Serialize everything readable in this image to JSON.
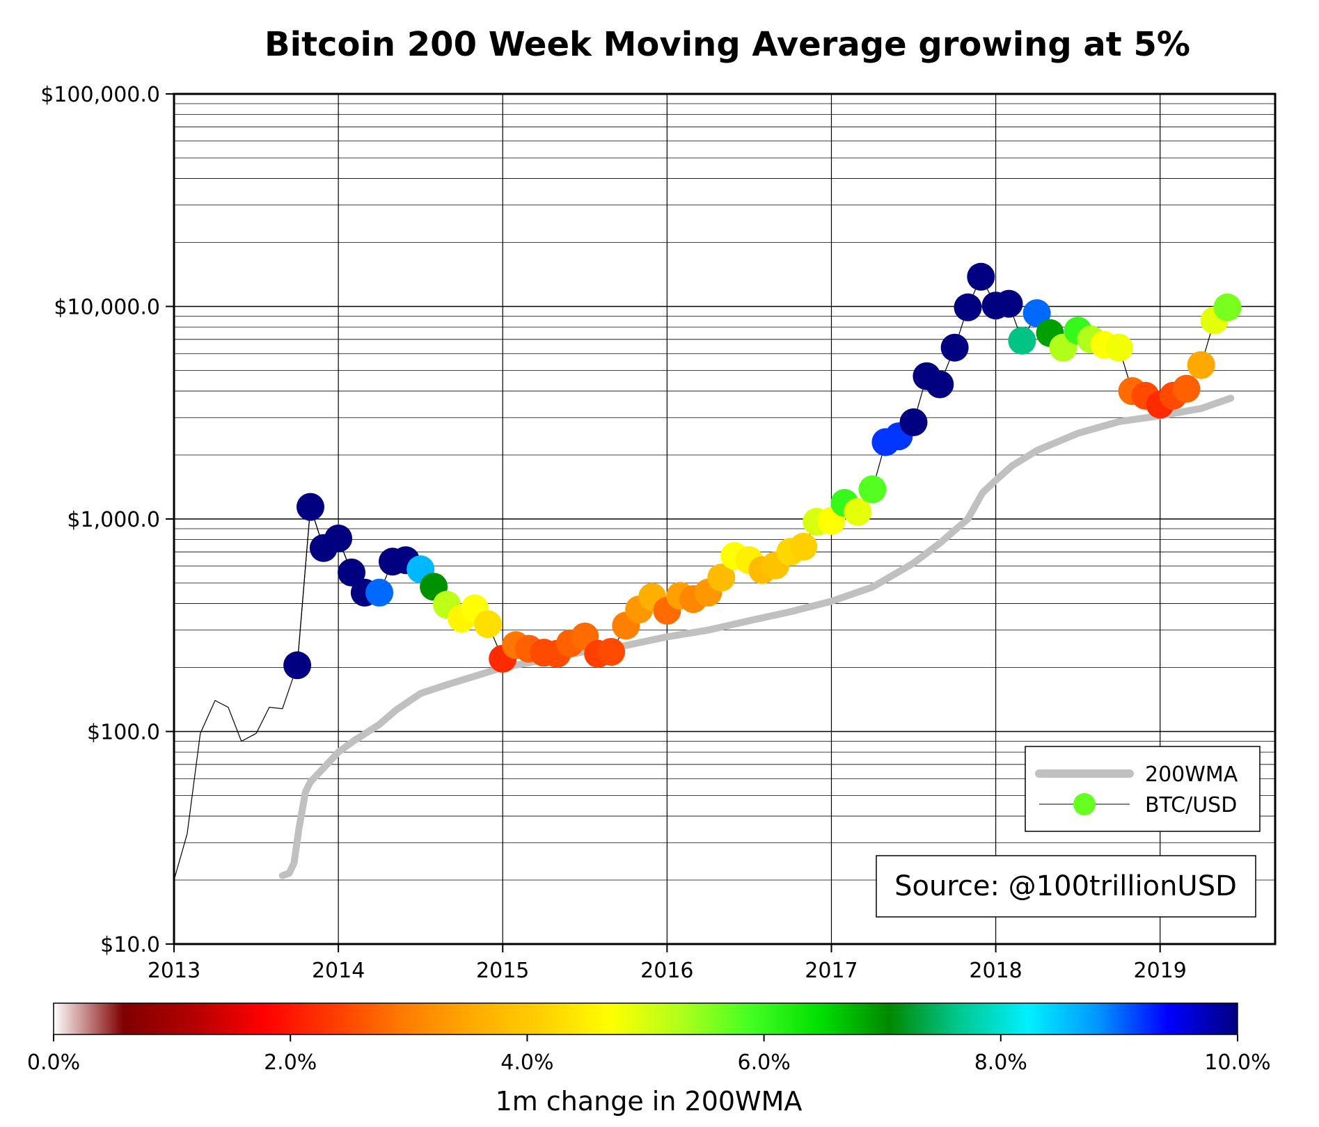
{
  "chart_data": {
    "type": "scatter",
    "title": "Bitcoin 200 Week Moving Average growing at 5%",
    "xlabel": "",
    "ylabel": "",
    "yscale": "log",
    "ylim": [
      10,
      100000
    ],
    "xlim": [
      2013.0,
      2019.7
    ],
    "x_ticks": [
      2013,
      2014,
      2015,
      2016,
      2017,
      2018,
      2019
    ],
    "x_tick_labels": [
      "2013",
      "2014",
      "2015",
      "2016",
      "2017",
      "2018",
      "2019"
    ],
    "y_ticks": [
      10,
      100,
      1000,
      10000,
      100000
    ],
    "y_tick_labels": [
      "$10.0",
      "$100.0",
      "$1,000.0",
      "$10,000.0",
      "$100,000.0"
    ],
    "grid": true,
    "legend": {
      "position": "lower-right",
      "entries": [
        "200WMA",
        "BTC/USD"
      ],
      "btc_marker_color": "#66ff22",
      "wma_color": "#c0c0c0"
    },
    "annotation": "Source: @100trillionUSD",
    "colorbar": {
      "label": "1m change in 200WMA",
      "min": 0,
      "max": 10,
      "ticks": [
        "0.0%",
        "2.0%",
        "4.0%",
        "6.0%",
        "8.0%",
        "10.0%"
      ],
      "colors": [
        "#ffffff",
        "#800000",
        "#b40000",
        "#ff0000",
        "#ff3a00",
        "#ff7a00",
        "#ffaa00",
        "#ffd000",
        "#ffff00",
        "#b0ff1a",
        "#44ff22",
        "#00e000",
        "#008800",
        "#00c890",
        "#00f0ff",
        "#0096ff",
        "#0000ff",
        "#000080"
      ]
    },
    "series": [
      {
        "name": "BTC/USD line (monthly)",
        "x": [
          2013.0,
          2013.08,
          2013.16,
          2013.25,
          2013.33,
          2013.41,
          2013.5,
          2013.58,
          2013.66,
          2013.75,
          2013.83,
          2013.91,
          2014.0,
          2014.08
        ],
        "y": [
          20,
          33,
          98,
          140,
          130,
          90,
          98,
          130,
          128,
          205,
          1140,
          730,
          810,
          560
        ]
      },
      {
        "name": "BTC/USD",
        "x": [
          2013.75,
          2013.83,
          2013.91,
          2014.0,
          2014.08,
          2014.16,
          2014.25,
          2014.33,
          2014.41,
          2014.5,
          2014.58,
          2014.66,
          2014.75,
          2014.83,
          2014.91,
          2015.0,
          2015.08,
          2015.16,
          2015.25,
          2015.33,
          2015.41,
          2015.5,
          2015.58,
          2015.66,
          2015.75,
          2015.83,
          2015.91,
          2016.0,
          2016.08,
          2016.16,
          2016.25,
          2016.33,
          2016.41,
          2016.5,
          2016.58,
          2016.66,
          2016.75,
          2016.83,
          2016.91,
          2017.0,
          2017.08,
          2017.16,
          2017.25,
          2017.33,
          2017.41,
          2017.5,
          2017.58,
          2017.66,
          2017.75,
          2017.83,
          2017.91,
          2018.0,
          2018.08,
          2018.16,
          2018.25,
          2018.33,
          2018.41,
          2018.5,
          2018.58,
          2018.66,
          2018.75,
          2018.83,
          2018.91,
          2019.0,
          2019.08,
          2019.16,
          2019.25,
          2019.33,
          2019.41
        ],
        "y": [
          205,
          1140,
          730,
          810,
          560,
          450,
          450,
          630,
          640,
          580,
          480,
          395,
          340,
          380,
          320,
          220,
          255,
          245,
          235,
          232,
          260,
          280,
          232,
          237,
          315,
          375,
          430,
          370,
          435,
          420,
          450,
          530,
          670,
          640,
          575,
          605,
          700,
          740,
          970,
          980,
          1190,
          1080,
          1380,
          2300,
          2450,
          2850,
          4700,
          4300,
          6400,
          9900,
          13800,
          10100,
          10300,
          6900,
          9300,
          7500,
          6400,
          7700,
          7000,
          6600,
          6400,
          4000,
          3800,
          3450,
          3800,
          4100,
          5300,
          8600,
          9900
        ],
        "color_pct": [
          10,
          10,
          10,
          10,
          10,
          10,
          9,
          10,
          10,
          8.6,
          7,
          5.2,
          4.6,
          4.7,
          4.3,
          2.2,
          2.9,
          2.7,
          2.5,
          2.5,
          2.7,
          2.8,
          2.4,
          2.5,
          3.0,
          3.3,
          3.6,
          2.8,
          3.4,
          3.1,
          3.3,
          3.8,
          4.7,
          4.5,
          3.8,
          3.9,
          4.2,
          4.1,
          5.0,
          4.7,
          6.0,
          4.9,
          5.8,
          9.2,
          9.2,
          10,
          10,
          10,
          10,
          10,
          10,
          10,
          10,
          7.6,
          9,
          6.9,
          5.3,
          6.0,
          5.3,
          4.7,
          4.8,
          2.8,
          2.5,
          2.2,
          2.5,
          2.7,
          3.5,
          4.9,
          5.6
        ]
      },
      {
        "name": "200WMA",
        "x": [
          2013.66,
          2013.7,
          2013.73,
          2013.76,
          2013.8,
          2013.83,
          2013.9,
          2014.0,
          2014.1,
          2014.25,
          2014.35,
          2014.5,
          2014.66,
          2014.83,
          2015.0,
          2015.25,
          2015.5,
          2015.75,
          2016.0,
          2016.25,
          2016.5,
          2016.75,
          2017.0,
          2017.25,
          2017.5,
          2017.66,
          2017.83,
          2017.92,
          2018.0,
          2018.1,
          2018.25,
          2018.5,
          2018.75,
          2019.0,
          2019.25,
          2019.43
        ],
        "y": [
          21,
          21.5,
          24,
          35,
          52,
          58,
          66,
          80,
          91,
          108,
          126,
          151,
          166,
          182,
          200,
          217,
          238,
          254,
          279,
          300,
          332,
          366,
          410,
          478,
          620,
          770,
          1000,
          1330,
          1520,
          1780,
          2100,
          2530,
          2870,
          3060,
          3310,
          3700
        ]
      }
    ]
  }
}
